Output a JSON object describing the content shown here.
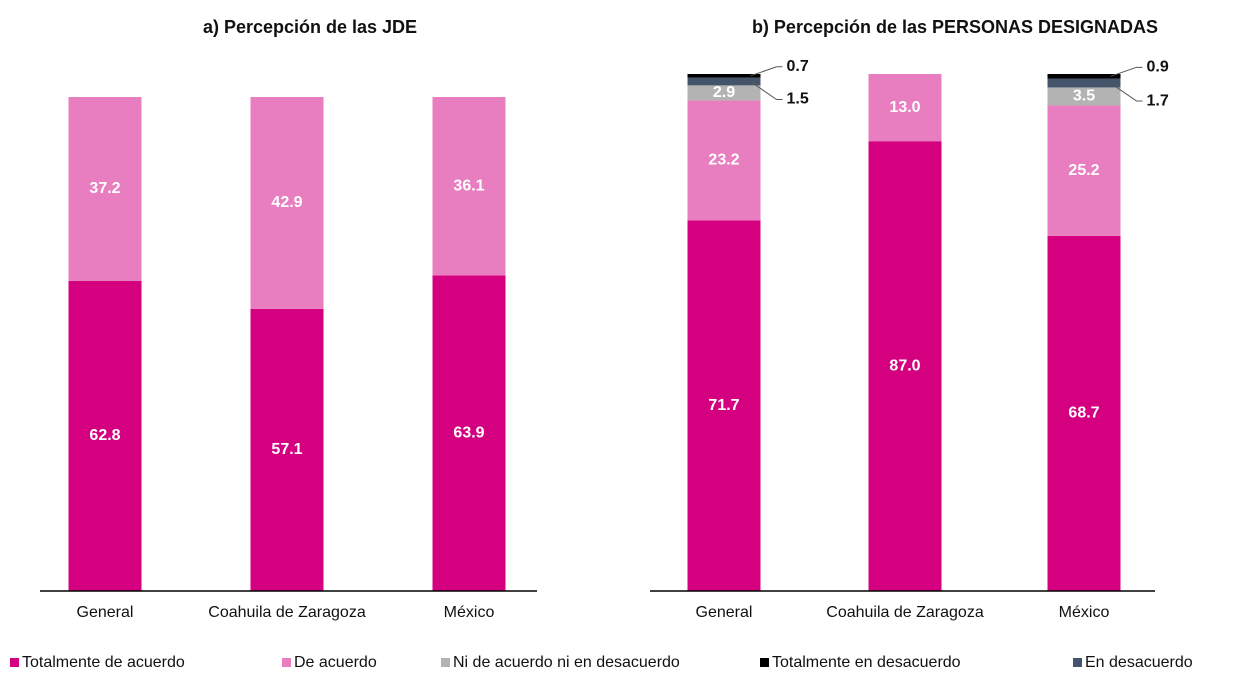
{
  "chart_data": [
    {
      "type": "bar",
      "stacked": true,
      "title": "a)   Percepción de las JDE",
      "categories": [
        "General",
        "Coahuila de Zaragoza",
        "México"
      ],
      "ylim": [
        0,
        100
      ],
      "series": [
        {
          "name": "Totalmente de acuerdo",
          "color": "#d4007f",
          "values": [
            62.8,
            57.1,
            63.9
          ],
          "value_labels": [
            "62.8",
            "57.1",
            "63.9"
          ]
        },
        {
          "name": "De acuerdo",
          "color": "#e87dbf",
          "values": [
            37.2,
            42.9,
            36.1
          ],
          "value_labels": [
            "37.2",
            "42.9",
            "36.1"
          ]
        }
      ]
    },
    {
      "type": "bar",
      "stacked": true,
      "title": "b)   Percepción de las PERSONAS DESIGNADAS",
      "categories": [
        "General",
        "Coahuila de Zaragoza",
        "México"
      ],
      "ylim": [
        0,
        100
      ],
      "series": [
        {
          "name": "Totalmente de acuerdo",
          "color": "#d4007f",
          "values": [
            71.7,
            87.0,
            68.7
          ],
          "value_labels": [
            "71.7",
            "87.0",
            "68.7"
          ]
        },
        {
          "name": "De acuerdo",
          "color": "#e87dbf",
          "values": [
            23.2,
            13.0,
            25.2
          ],
          "value_labels": [
            "23.2",
            "13.0",
            "25.2"
          ]
        },
        {
          "name": "Ni de acuerdo ni en desacuerdo",
          "color": "#b3b3b3",
          "values": [
            2.9,
            null,
            3.5
          ],
          "value_labels": [
            "2.9",
            null,
            "3.5"
          ]
        },
        {
          "name": "En desacuerdo",
          "color": "#44546a",
          "values": [
            1.5,
            null,
            1.7
          ],
          "value_labels": [
            "1.5",
            null,
            "1.7"
          ]
        },
        {
          "name": "Totalmente en desacuerdo",
          "color": "#000000",
          "values": [
            0.7,
            null,
            0.9
          ],
          "value_labels": [
            "0.7",
            null,
            "0.9"
          ]
        }
      ]
    }
  ]
}
